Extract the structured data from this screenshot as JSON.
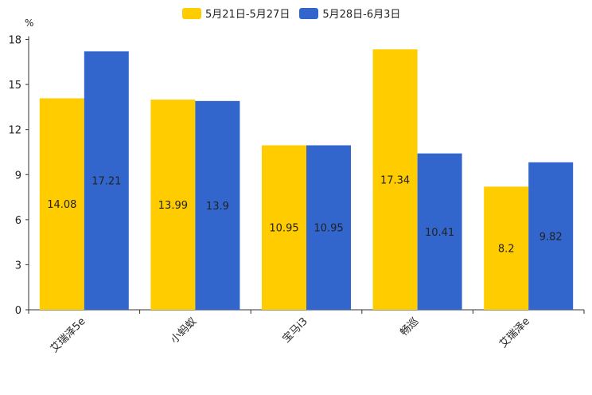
{
  "chart_data": {
    "type": "bar",
    "title": "",
    "xlabel": "",
    "ylabel": "%",
    "ylim": [
      0,
      18
    ],
    "yticks": [
      0,
      3,
      6,
      9,
      12,
      15,
      18
    ],
    "categories": [
      "艾瑞泽5e",
      "小蚂蚁",
      "宝马i3",
      "畅巡",
      "艾瑞泽e"
    ],
    "series": [
      {
        "name": "5月21日-5月27日",
        "color": "#FFCC00",
        "values": [
          14.08,
          13.99,
          10.95,
          17.34,
          8.2
        ],
        "labels": [
          "14.08",
          "13.99",
          "10.95",
          "17.34",
          "8.2"
        ]
      },
      {
        "name": "5月28日-6月3日",
        "color": "#3366CC",
        "values": [
          17.21,
          13.9,
          10.95,
          10.41,
          9.82
        ],
        "labels": [
          "17.21",
          "13.9",
          "10.95",
          "10.41",
          "9.82"
        ]
      }
    ],
    "legend_position": "top-center",
    "grid": false
  }
}
